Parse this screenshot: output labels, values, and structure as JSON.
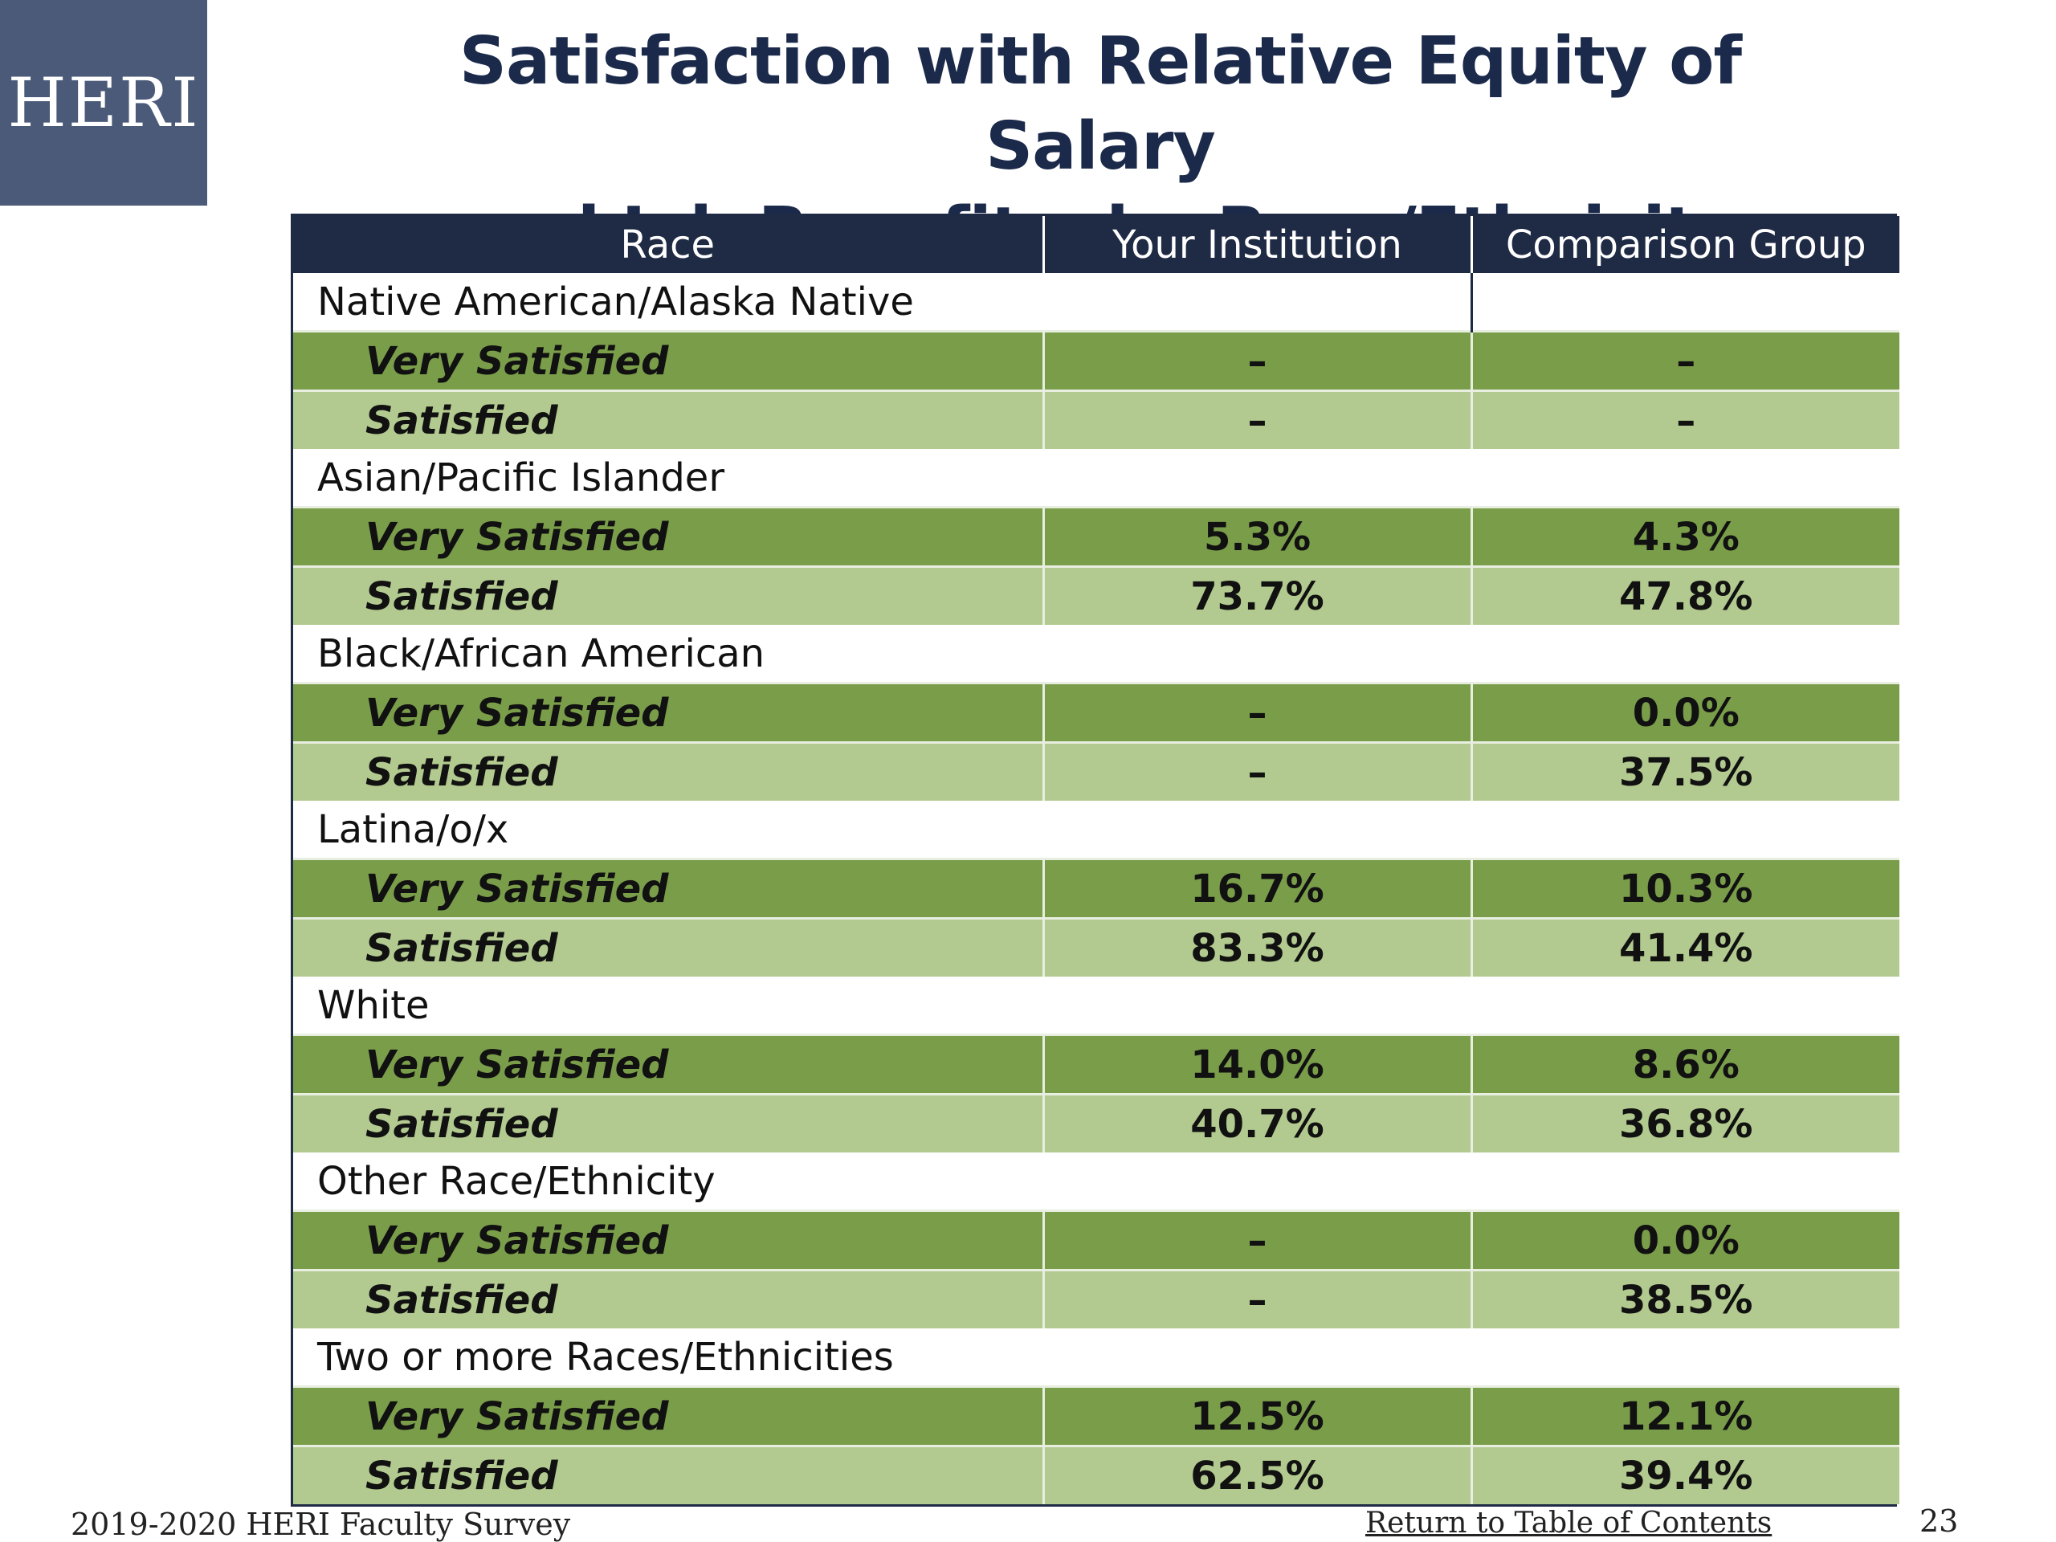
{
  "logo": {
    "text": "HERI"
  },
  "title": {
    "line1": "Satisfaction with Relative Equity of Salary",
    "line2": "and Job Benefits, by Race/Ethnicity"
  },
  "table": {
    "headers": [
      "Race",
      "Your Institution",
      "Comparison Group"
    ],
    "groups": [
      {
        "name": "Native American/Alaska Native",
        "very_satisfied": {
          "label": "Very Satisfied",
          "institution": "–",
          "comparison": "–"
        },
        "satisfied": {
          "label": "Satisfied",
          "institution": "–",
          "comparison": "–"
        }
      },
      {
        "name": "Asian/Pacific Islander",
        "very_satisfied": {
          "label": "Very Satisfied",
          "institution": "5.3%",
          "comparison": "4.3%"
        },
        "satisfied": {
          "label": "Satisfied",
          "institution": "73.7%",
          "comparison": "47.8%"
        }
      },
      {
        "name": "Black/African American",
        "very_satisfied": {
          "label": "Very Satisfied",
          "institution": "–",
          "comparison": "0.0%"
        },
        "satisfied": {
          "label": "Satisfied",
          "institution": "–",
          "comparison": "37.5%"
        }
      },
      {
        "name": "Latina/o/x",
        "very_satisfied": {
          "label": "Very Satisfied",
          "institution": "16.7%",
          "comparison": "10.3%"
        },
        "satisfied": {
          "label": "Satisfied",
          "institution": "83.3%",
          "comparison": "41.4%"
        }
      },
      {
        "name": "White",
        "very_satisfied": {
          "label": "Very Satisfied",
          "institution": "14.0%",
          "comparison": "8.6%"
        },
        "satisfied": {
          "label": "Satisfied",
          "institution": "40.7%",
          "comparison": "36.8%"
        }
      },
      {
        "name": "Other Race/Ethnicity",
        "very_satisfied": {
          "label": "Very Satisfied",
          "institution": "–",
          "comparison": "0.0%"
        },
        "satisfied": {
          "label": "Satisfied",
          "institution": "–",
          "comparison": "38.5%"
        }
      },
      {
        "name": "Two or more Races/Ethnicities",
        "very_satisfied": {
          "label": "Very Satisfied",
          "institution": "12.5%",
          "comparison": "12.1%"
        },
        "satisfied": {
          "label": "Satisfied",
          "institution": "62.5%",
          "comparison": "39.4%"
        }
      }
    ]
  },
  "footer": {
    "survey": "2019-2020 HERI Faculty Survey",
    "link": "Return to Table of Contents",
    "page_number": "23"
  },
  "colors": {
    "header_bg": "#1f2a44",
    "very_satisfied_bg": "#7a9d4a",
    "satisfied_bg": "#b2ca8f",
    "logo_bg": "#4a5a78",
    "title": "#1b2a4a"
  }
}
